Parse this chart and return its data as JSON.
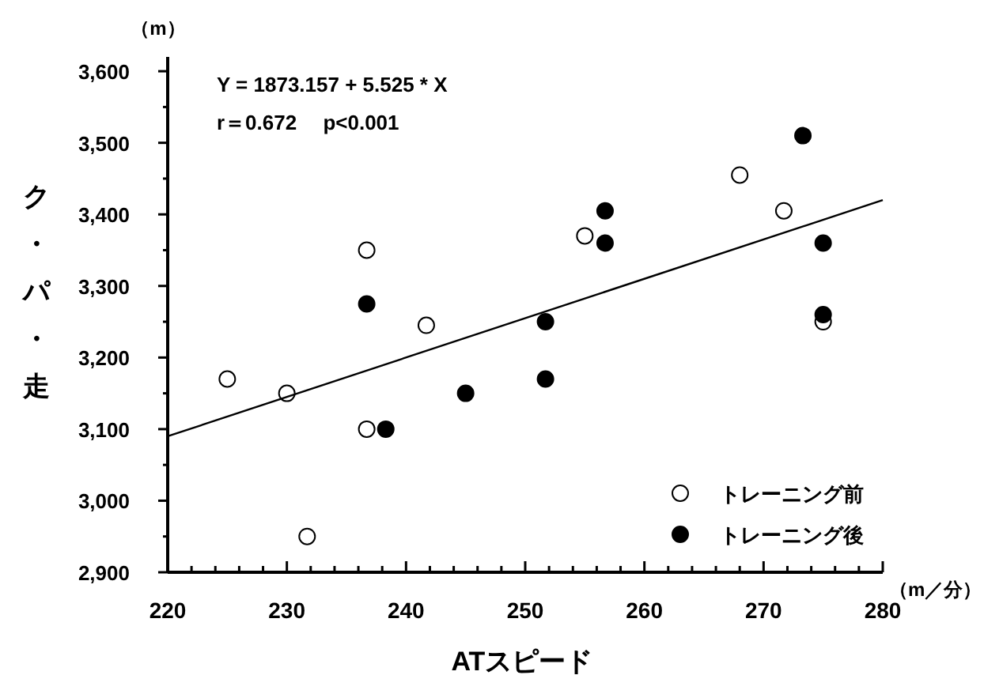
{
  "chart_data": {
    "type": "scatter",
    "xlabel": "ATスピード",
    "ylabel": "ク・パ・走",
    "annotations": [
      "（m）",
      "（m／分）",
      "Y = 1873.157 + 5.525 * X",
      "r＝0.672　 p<0.001"
    ],
    "series": [
      {
        "name": "トレーニング前",
        "color": "#ffffff",
        "x": [
          225,
          230,
          231.7,
          236.7,
          236.7,
          241.7,
          255,
          268,
          271.7,
          275
        ],
        "values": [
          3170,
          3150,
          2950,
          3350,
          3100,
          3245,
          3370,
          3455,
          3405,
          3250
        ]
      },
      {
        "name": "トレーニング後",
        "color": "#000000",
        "x": [
          236.7,
          238.3,
          245,
          251.7,
          251.7,
          256.7,
          256.7,
          273.3,
          275,
          275
        ],
        "values": [
          3275,
          3100,
          3150,
          3250,
          3170,
          3405,
          3360,
          3510,
          3360,
          3260
        ]
      },
      {
        "type": "line",
        "marker": "none",
        "color": "#000000",
        "x": [
          220,
          280
        ],
        "values": [
          3090,
          3420
        ]
      }
    ],
    "xlim": [
      220,
      280
    ],
    "ylim": [
      2900,
      3620
    ],
    "xticks": [
      220,
      {
        "value": 222,
        "label": null
      },
      {
        "value": 224,
        "label": null
      },
      {
        "value": 226,
        "label": null
      },
      {
        "value": 228,
        "label": null
      },
      230,
      {
        "value": 232,
        "label": null
      },
      {
        "value": 234,
        "label": null
      },
      {
        "value": 236,
        "label": null
      },
      {
        "value": 238,
        "label": null
      },
      240,
      {
        "value": 242,
        "label": null
      },
      {
        "value": 244,
        "label": null
      },
      {
        "value": 246,
        "label": null
      },
      {
        "value": 248,
        "label": null
      },
      250,
      {
        "value": 252,
        "label": null
      },
      {
        "value": 254,
        "label": null
      },
      {
        "value": 256,
        "label": null
      },
      {
        "value": 258,
        "label": null
      },
      260,
      {
        "value": 262,
        "label": null
      },
      {
        "value": 264,
        "label": null
      },
      {
        "value": 266,
        "label": null
      },
      {
        "value": 268,
        "label": null
      },
      270,
      {
        "value": 272,
        "label": null
      },
      {
        "value": 274,
        "label": null
      },
      {
        "value": 276,
        "label": null
      },
      {
        "value": 278,
        "label": null
      },
      280
    ],
    "yticks": [
      {
        "value": 2900,
        "label": "2,900"
      },
      {
        "value": 2950,
        "label": null
      },
      {
        "value": 3000,
        "label": "3,000"
      },
      {
        "value": 3050,
        "label": null
      },
      {
        "value": 3100,
        "label": "3,100"
      },
      {
        "value": 3150,
        "label": null
      },
      {
        "value": 3200,
        "label": "3,200"
      },
      {
        "value": 3250,
        "label": null
      },
      {
        "value": 3300,
        "label": "3,300"
      },
      {
        "value": 3350,
        "label": null
      },
      {
        "value": 3400,
        "label": "3,400"
      },
      {
        "value": 3450,
        "label": null
      },
      {
        "value": 3500,
        "label": "3,500"
      },
      {
        "value": 3550,
        "label": null
      },
      {
        "value": 3600,
        "label": "3,600"
      }
    ],
    "grid": false,
    "legend": "bottom right",
    "marker": "circle"
  }
}
